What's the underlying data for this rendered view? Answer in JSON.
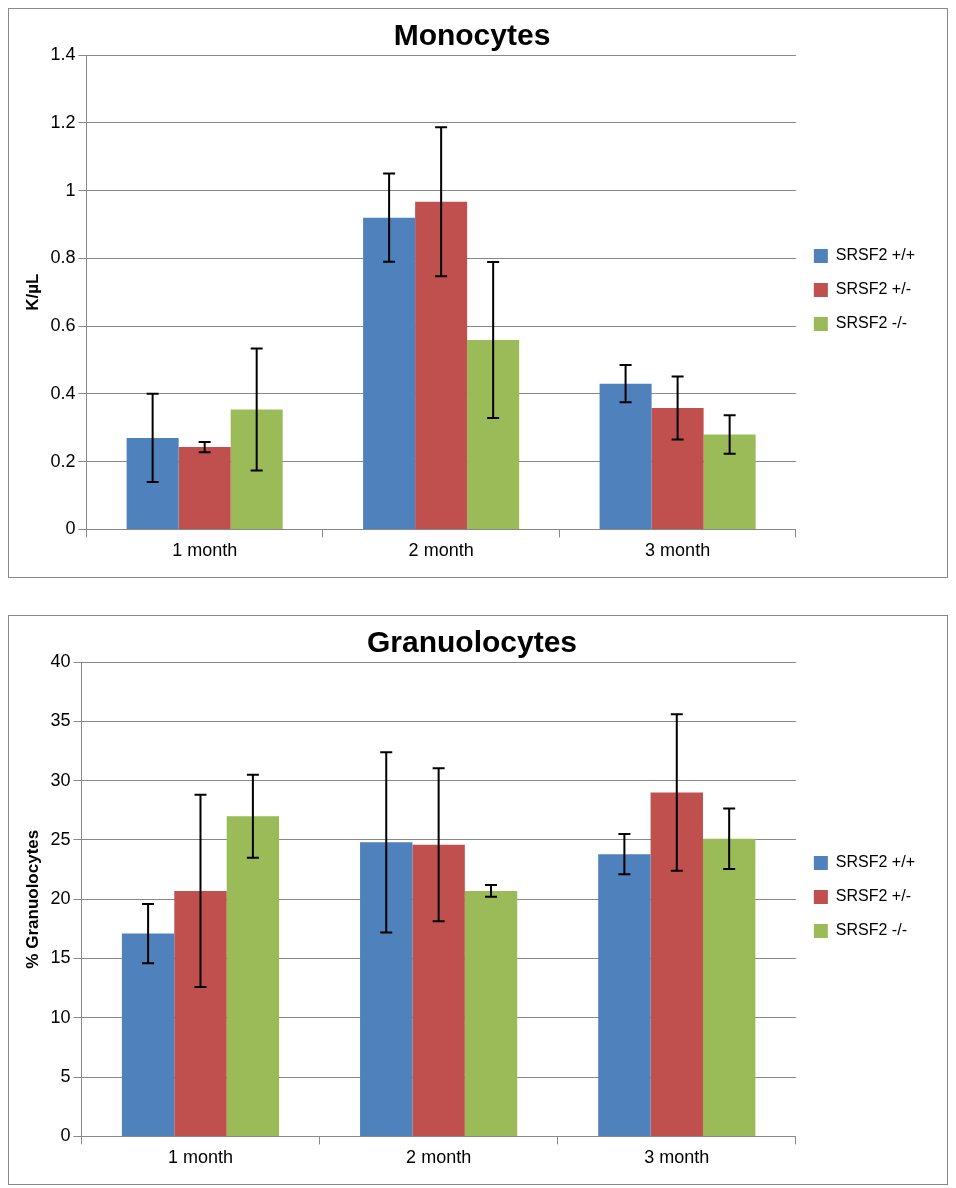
{
  "chart_data": [
    {
      "type": "bar",
      "title": "Monocytes",
      "ylabel": "K/µL",
      "categories": [
        "1 month",
        "2 month",
        "3 month"
      ],
      "series": [
        {
          "name": "SRSF2 +/+",
          "color": "#4f81bd",
          "values": [
            0.27,
            0.92,
            0.43
          ],
          "errors": [
            0.13,
            0.13,
            0.055
          ]
        },
        {
          "name": "SRSF2 +/-",
          "color": "#c0504d",
          "values": [
            0.243,
            0.967,
            0.358
          ],
          "errors": [
            0.015,
            0.22,
            0.093
          ]
        },
        {
          "name": "SRSF2 -/-",
          "color": "#9bbb59",
          "values": [
            0.354,
            0.559,
            0.28
          ],
          "errors": [
            0.18,
            0.23,
            0.057
          ]
        }
      ],
      "ylim": [
        0,
        1.4
      ],
      "yticks": [
        0,
        0.2,
        0.4,
        0.6,
        0.8,
        1,
        1.2,
        1.4
      ],
      "grid": "y",
      "legend": "right"
    },
    {
      "type": "bar",
      "title": "Granuolocytes",
      "ylabel": "% Granuolocytes",
      "categories": [
        "1 month",
        "2 month",
        "3 month"
      ],
      "series": [
        {
          "name": "SRSF2 +/+",
          "color": "#4f81bd",
          "values": [
            17.1,
            24.8,
            23.8
          ],
          "errors": [
            2.5,
            7.6,
            1.7
          ]
        },
        {
          "name": "SRSF2 +/-",
          "color": "#c0504d",
          "values": [
            20.7,
            24.6,
            29.0
          ],
          "errors": [
            8.1,
            6.45,
            6.6
          ]
        },
        {
          "name": "SRSF2 -/-",
          "color": "#9bbb59",
          "values": [
            27.0,
            20.7,
            25.1
          ],
          "errors": [
            3.5,
            0.5,
            2.55
          ]
        }
      ],
      "ylim": [
        0,
        40
      ],
      "yticks": [
        0,
        5,
        10,
        15,
        20,
        25,
        30,
        35,
        40
      ],
      "grid": "y",
      "legend": "right"
    }
  ]
}
